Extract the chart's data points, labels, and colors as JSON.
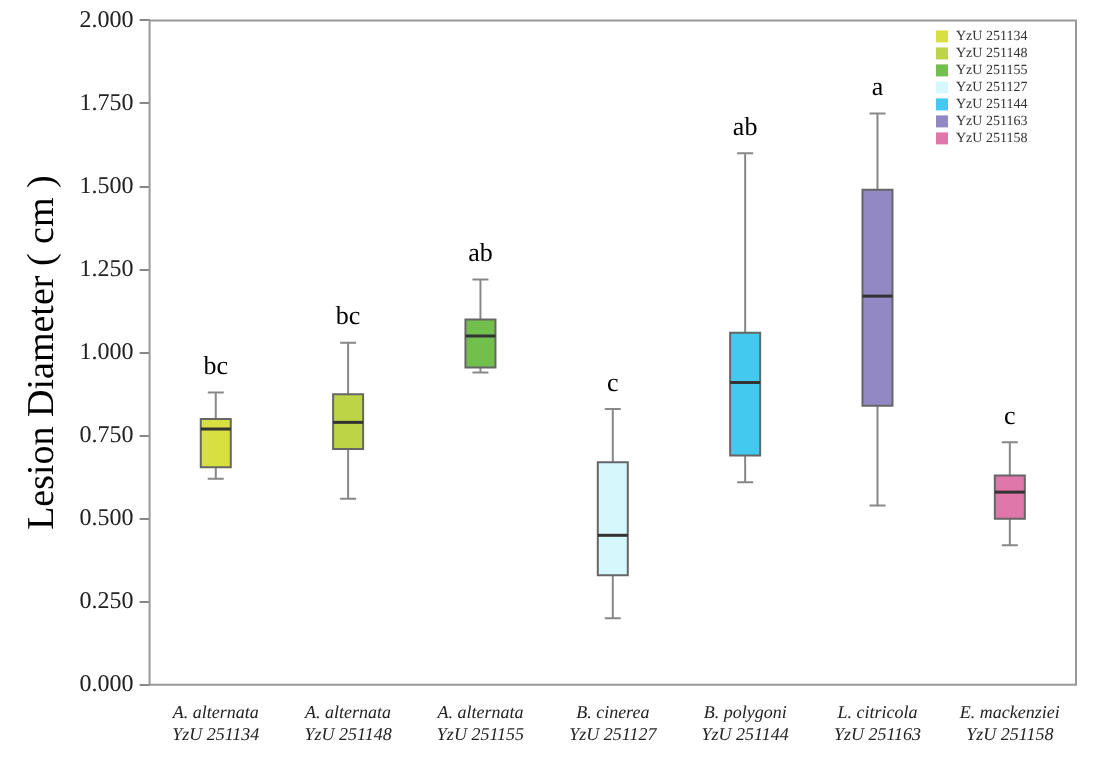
{
  "chart_data": {
    "type": "box",
    "ylabel": "Lesion Diameter ( cm )",
    "categories": [
      "A. alternata\nYzU 251134",
      "A. alternata\nYzU 251148",
      "A. alternata\nYzU 251155",
      "B. cinerea\nYzU 251127",
      "B. polygoni\nYzU 251144",
      "L. citricola\nYzU 251163",
      "E. mackenziei\nYzU 251158"
    ],
    "series": [
      {
        "name": "YzU 251134",
        "color": "#d7e040",
        "boxes": [
          {
            "low": 0.62,
            "q1": 0.655,
            "median": 0.77,
            "q3": 0.8,
            "high": 0.88
          },
          null,
          null,
          null,
          null,
          null,
          null
        ]
      },
      {
        "name": "YzU 251148",
        "color": "#bcd445",
        "boxes": [
          null,
          {
            "low": 0.56,
            "q1": 0.71,
            "median": 0.79,
            "q3": 0.875,
            "high": 1.03
          },
          null,
          null,
          null,
          null,
          null
        ]
      },
      {
        "name": "YzU 251155",
        "color": "#72bf4e",
        "boxes": [
          null,
          null,
          {
            "low": 0.94,
            "q1": 0.955,
            "median": 1.05,
            "q3": 1.1,
            "high": 1.22
          },
          null,
          null,
          null,
          null
        ]
      },
      {
        "name": "YzU 251127",
        "color": "#d6f8fc",
        "boxes": [
          null,
          null,
          null,
          {
            "low": 0.2,
            "q1": 0.33,
            "median": 0.45,
            "q3": 0.67,
            "high": 0.83
          },
          null,
          null,
          null
        ]
      },
      {
        "name": "YzU 251144",
        "color": "#43c8ef",
        "boxes": [
          null,
          null,
          null,
          null,
          {
            "low": 0.61,
            "q1": 0.69,
            "median": 0.91,
            "q3": 1.06,
            "high": 1.6
          },
          null,
          null
        ]
      },
      {
        "name": "YzU 251163",
        "color": "#9188c4",
        "boxes": [
          null,
          null,
          null,
          null,
          null,
          {
            "low": 0.54,
            "q1": 0.84,
            "median": 1.17,
            "q3": 1.49,
            "high": 1.72
          },
          null
        ]
      },
      {
        "name": "YzU 251158",
        "color": "#e077ab",
        "boxes": [
          null,
          null,
          null,
          null,
          null,
          null,
          {
            "low": 0.42,
            "q1": 0.5,
            "median": 0.58,
            "q3": 0.63,
            "high": 0.73
          }
        ]
      }
    ],
    "ylim": [
      0,
      2
    ],
    "yticks": [
      {
        "value": 0,
        "label": "0.000"
      },
      {
        "value": 0.25,
        "label": "0.250"
      },
      {
        "value": 0.5,
        "label": "0.500"
      },
      {
        "value": 0.75,
        "label": "0.750"
      },
      {
        "value": 1,
        "label": "1.000"
      },
      {
        "value": 1.25,
        "label": "1.250"
      },
      {
        "value": 1.5,
        "label": "1.500"
      },
      {
        "value": 1.75,
        "label": "1.750"
      },
      {
        "value": 2,
        "label": "2.000"
      }
    ],
    "legend": "top right",
    "grid": false,
    "annotations": [
      "bc",
      "bc",
      "ab",
      "c",
      "ab",
      "a",
      "c"
    ]
  }
}
